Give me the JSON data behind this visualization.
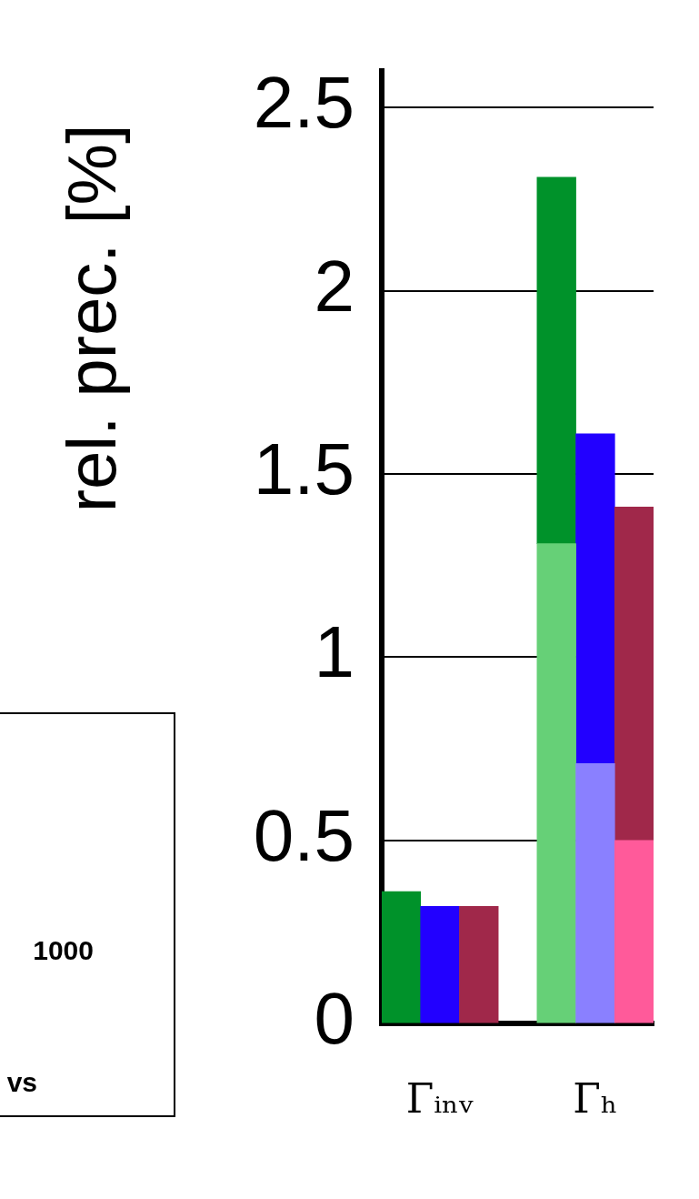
{
  "chart_data": {
    "type": "bar",
    "ylabel": "rel. prec. [%]",
    "categories": [
      null,
      "Γᵢₙᵥ",
      null,
      null,
      null,
      "Γₕ",
      null
    ],
    "stacked": true,
    "series": [
      {
        "colors": [
          "#66d077",
          "#8a80ff",
          "#ff5a9a",
          "#ffffff",
          "#66d077",
          "#8a80ff",
          "#ff5a9a"
        ],
        "values": [
          null,
          null,
          null,
          null,
          1.31,
          0.71,
          0.5
        ]
      },
      {
        "colors": [
          "#00922a",
          "#2200ff",
          "#a0284a",
          "#ffffff",
          "#00922a",
          "#2200ff",
          "#a0284a"
        ],
        "values": [
          0.36,
          0.32,
          0.32,
          null,
          1.0,
          0.9,
          0.91
        ]
      }
    ],
    "ylim": [
      0,
      2.6
    ],
    "yticks": [
      0,
      0.5,
      1,
      1.5,
      2,
      2.5
    ],
    "grid": "y",
    "legend": false,
    "annotations": [
      "1000",
      "vs"
    ]
  }
}
